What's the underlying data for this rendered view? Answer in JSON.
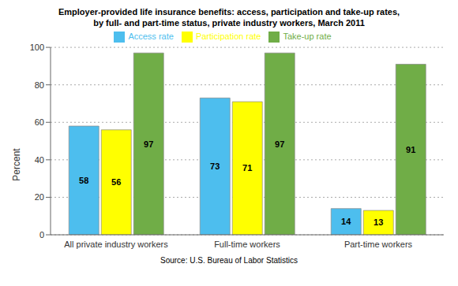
{
  "chart_data": {
    "type": "bar",
    "title": "Employer-provided life insurance benefits: access, participation and take-up rates,",
    "subtitle": "by full- and part-time status, private industry workers, March 2011",
    "annotations": [
      "Source: U.S. Bureau of Labor Statistics"
    ],
    "categories": [
      "All private industry workers",
      "Full-time workers",
      "Part-time workers"
    ],
    "series": [
      {
        "name": "Access rate",
        "color": "#4DBEEE",
        "values": [
          58,
          73,
          14
        ]
      },
      {
        "name": "Participation rate",
        "color": "#FFFF00",
        "values": [
          56,
          71,
          13
        ]
      },
      {
        "name": "Take-up rate",
        "color": "#70AD47",
        "values": [
          97,
          97,
          91
        ]
      }
    ],
    "ylabel": "Percent",
    "ylim": [
      0,
      100
    ],
    "yticks": [
      0,
      20,
      40,
      60,
      80,
      100
    ],
    "grid": true,
    "legend": "top",
    "data_labels": true
  }
}
